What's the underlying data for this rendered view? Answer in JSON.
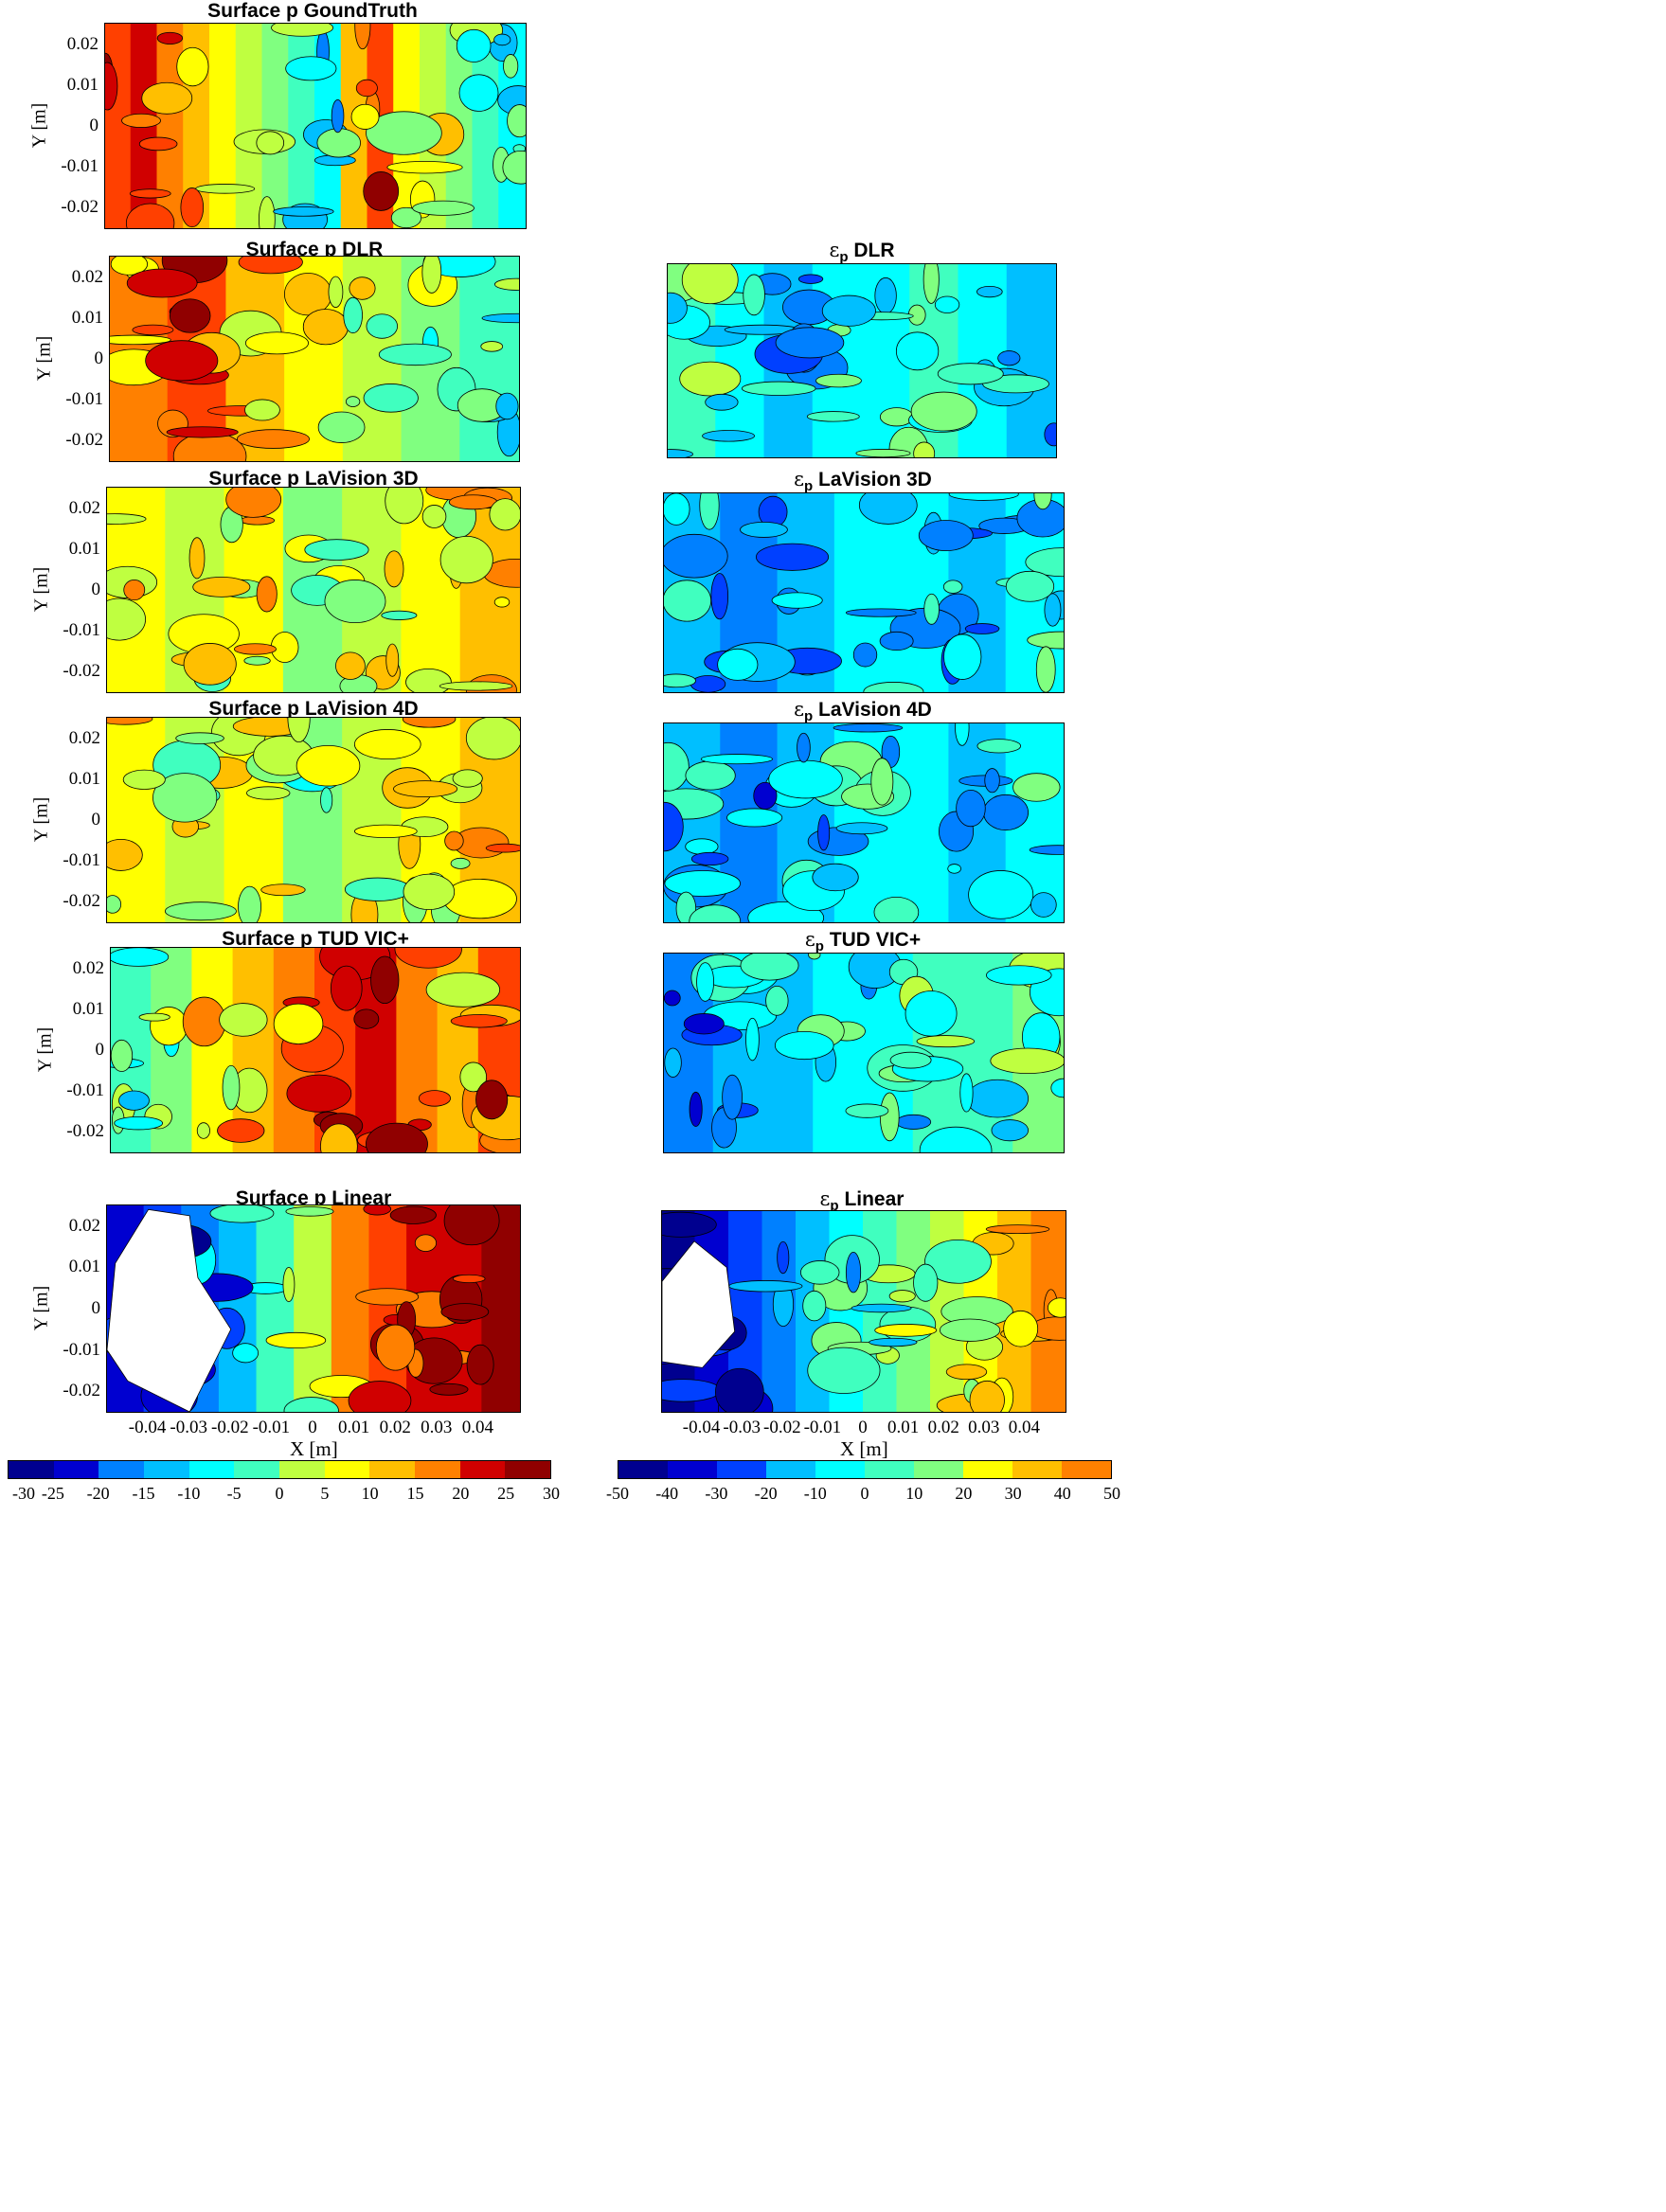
{
  "colorscale": [
    "#00008f",
    "#0000d0",
    "#0040ff",
    "#0080ff",
    "#00bfff",
    "#00ffff",
    "#40ffbf",
    "#80ff80",
    "#bfff40",
    "#ffff00",
    "#ffbf00",
    "#ff8000",
    "#ff4000",
    "#d00000",
    "#900000"
  ],
  "chart_data": [
    {
      "type": "heatmap",
      "title": "Surface p GoundTruth",
      "ylabel": "Y [m]",
      "xlabel": "",
      "xlim": [
        -0.05,
        0.05
      ],
      "ylim": [
        -0.025,
        0.025
      ],
      "yticks": [
        "0.02",
        "0.01",
        "0",
        "-0.01",
        "-0.02"
      ],
      "xticks": [],
      "clim": [
        -30,
        30
      ],
      "level_pattern": [
        12,
        13,
        11,
        10,
        9,
        8,
        7,
        6,
        5,
        10,
        12,
        9,
        8,
        7,
        6,
        5
      ],
      "contour_levels": 12
    },
    {
      "type": "heatmap",
      "title": "Surface p DLR",
      "ylabel": "Y [m]",
      "xlabel": "",
      "xlim": [
        -0.05,
        0.05
      ],
      "ylim": [
        -0.025,
        0.025
      ],
      "yticks": [
        "0.02",
        "0.01",
        "0",
        "-0.01",
        "-0.02"
      ],
      "xticks": [],
      "clim": [
        -30,
        30
      ],
      "level_pattern": [
        11,
        12,
        10,
        9,
        8,
        7,
        6
      ],
      "contour_levels": 7
    },
    {
      "type": "heatmap",
      "title": "ε_p DLR",
      "ylabel": "",
      "xlabel": "",
      "xlim": [
        -0.05,
        0.05
      ],
      "ylim": [
        -0.025,
        0.025
      ],
      "yticks": [],
      "xticks": [],
      "clim": [
        -50,
        50
      ],
      "level_pattern": [
        6,
        5,
        4,
        5,
        5,
        6,
        5,
        4
      ],
      "contour_levels": 6
    },
    {
      "type": "heatmap",
      "title": "Surface p LaVision 3D",
      "ylabel": "Y [m]",
      "xlabel": "",
      "xlim": [
        -0.05,
        0.05
      ],
      "ylim": [
        -0.025,
        0.025
      ],
      "yticks": [
        "0.02",
        "0.01",
        "0",
        "-0.01",
        "-0.02"
      ],
      "xticks": [],
      "clim": [
        -30,
        30
      ],
      "level_pattern": [
        9,
        8,
        9,
        7,
        8,
        9,
        10
      ],
      "contour_levels": 5
    },
    {
      "type": "heatmap",
      "title": "ε_p LaVision 3D",
      "ylabel": "",
      "xlabel": "",
      "xlim": [
        -0.05,
        0.05
      ],
      "ylim": [
        -0.025,
        0.025
      ],
      "yticks": [],
      "xticks": [],
      "clim": [
        -50,
        50
      ],
      "level_pattern": [
        4,
        3,
        4,
        5,
        5,
        4,
        5
      ],
      "contour_levels": 6
    },
    {
      "type": "heatmap",
      "title": "Surface p LaVision 4D",
      "ylabel": "Y [m]",
      "xlabel": "",
      "xlim": [
        -0.05,
        0.05
      ],
      "ylim": [
        -0.025,
        0.025
      ],
      "yticks": [
        "0.02",
        "0.01",
        "0",
        "-0.01",
        "-0.02"
      ],
      "xticks": [],
      "clim": [
        -30,
        30
      ],
      "level_pattern": [
        9,
        8,
        9,
        7,
        8,
        9,
        10
      ],
      "contour_levels": 5
    },
    {
      "type": "heatmap",
      "title": "ε_p LaVision 4D",
      "ylabel": "",
      "xlabel": "",
      "xlim": [
        -0.05,
        0.05
      ],
      "ylim": [
        -0.025,
        0.025
      ],
      "yticks": [],
      "xticks": [],
      "clim": [
        -50,
        50
      ],
      "level_pattern": [
        4,
        3,
        4,
        5,
        5,
        4,
        5
      ],
      "contour_levels": 6
    },
    {
      "type": "heatmap",
      "title": "Surface p TUD VIC+",
      "ylabel": "Y [m]",
      "xlabel": "",
      "xlim": [
        -0.05,
        0.05
      ],
      "ylim": [
        -0.025,
        0.025
      ],
      "yticks": [
        "0.02",
        "0.01",
        "0",
        "-0.01",
        "-0.02"
      ],
      "xticks": [],
      "clim": [
        -30,
        30
      ],
      "level_pattern": [
        6,
        7,
        9,
        10,
        11,
        12,
        13,
        11,
        10,
        12
      ],
      "contour_levels": 12
    },
    {
      "type": "heatmap",
      "title": "ε_p TUD VIC+",
      "ylabel": "",
      "xlabel": "",
      "xlim": [
        -0.05,
        0.05
      ],
      "ylim": [
        -0.025,
        0.025
      ],
      "yticks": [],
      "xticks": [],
      "clim": [
        -50,
        50
      ],
      "level_pattern": [
        3,
        4,
        4,
        5,
        5,
        6,
        6,
        7
      ],
      "contour_levels": 6
    },
    {
      "type": "heatmap",
      "title": "Surface p Linear",
      "ylabel": "Y [m]",
      "xlabel": "X [m]",
      "xlim": [
        -0.05,
        0.05
      ],
      "ylim": [
        -0.025,
        0.025
      ],
      "yticks": [
        "0.02",
        "0.01",
        "0",
        "-0.01",
        "-0.02"
      ],
      "xticks": [
        "-0.04",
        "-0.03",
        "-0.02",
        "-0.01",
        "0",
        "0.01",
        "0.02",
        "0.03",
        "0.04"
      ],
      "clim": [
        -30,
        30
      ],
      "level_pattern": [
        1,
        2,
        3,
        4,
        6,
        8,
        11,
        12,
        13,
        13,
        14
      ],
      "contour_levels": 12
    },
    {
      "type": "heatmap",
      "title": "ε_p Linear",
      "ylabel": "",
      "xlabel": "X [m]",
      "xlim": [
        -0.05,
        0.05
      ],
      "ylim": [
        -0.025,
        0.025
      ],
      "yticks": [],
      "xticks": [
        "-0.04",
        "-0.03",
        "-0.02",
        "-0.01",
        "0",
        "0.01",
        "0.02",
        "0.03",
        "0.04"
      ],
      "clim": [
        -50,
        50
      ],
      "level_pattern": [
        0,
        1,
        2,
        3,
        4,
        5,
        6,
        7,
        8,
        9,
        10,
        11
      ],
      "contour_levels": 10
    }
  ],
  "colorbars": [
    {
      "ticks": [
        "-30",
        "-25",
        "-20",
        "-15",
        "-10",
        "-5",
        "0",
        "5",
        "10",
        "15",
        "20",
        "25",
        "30"
      ]
    },
    {
      "ticks": [
        "-50",
        "-40",
        "-30",
        "-20",
        "-10",
        "0",
        "10",
        "20",
        "30",
        "40",
        "50"
      ]
    }
  ]
}
